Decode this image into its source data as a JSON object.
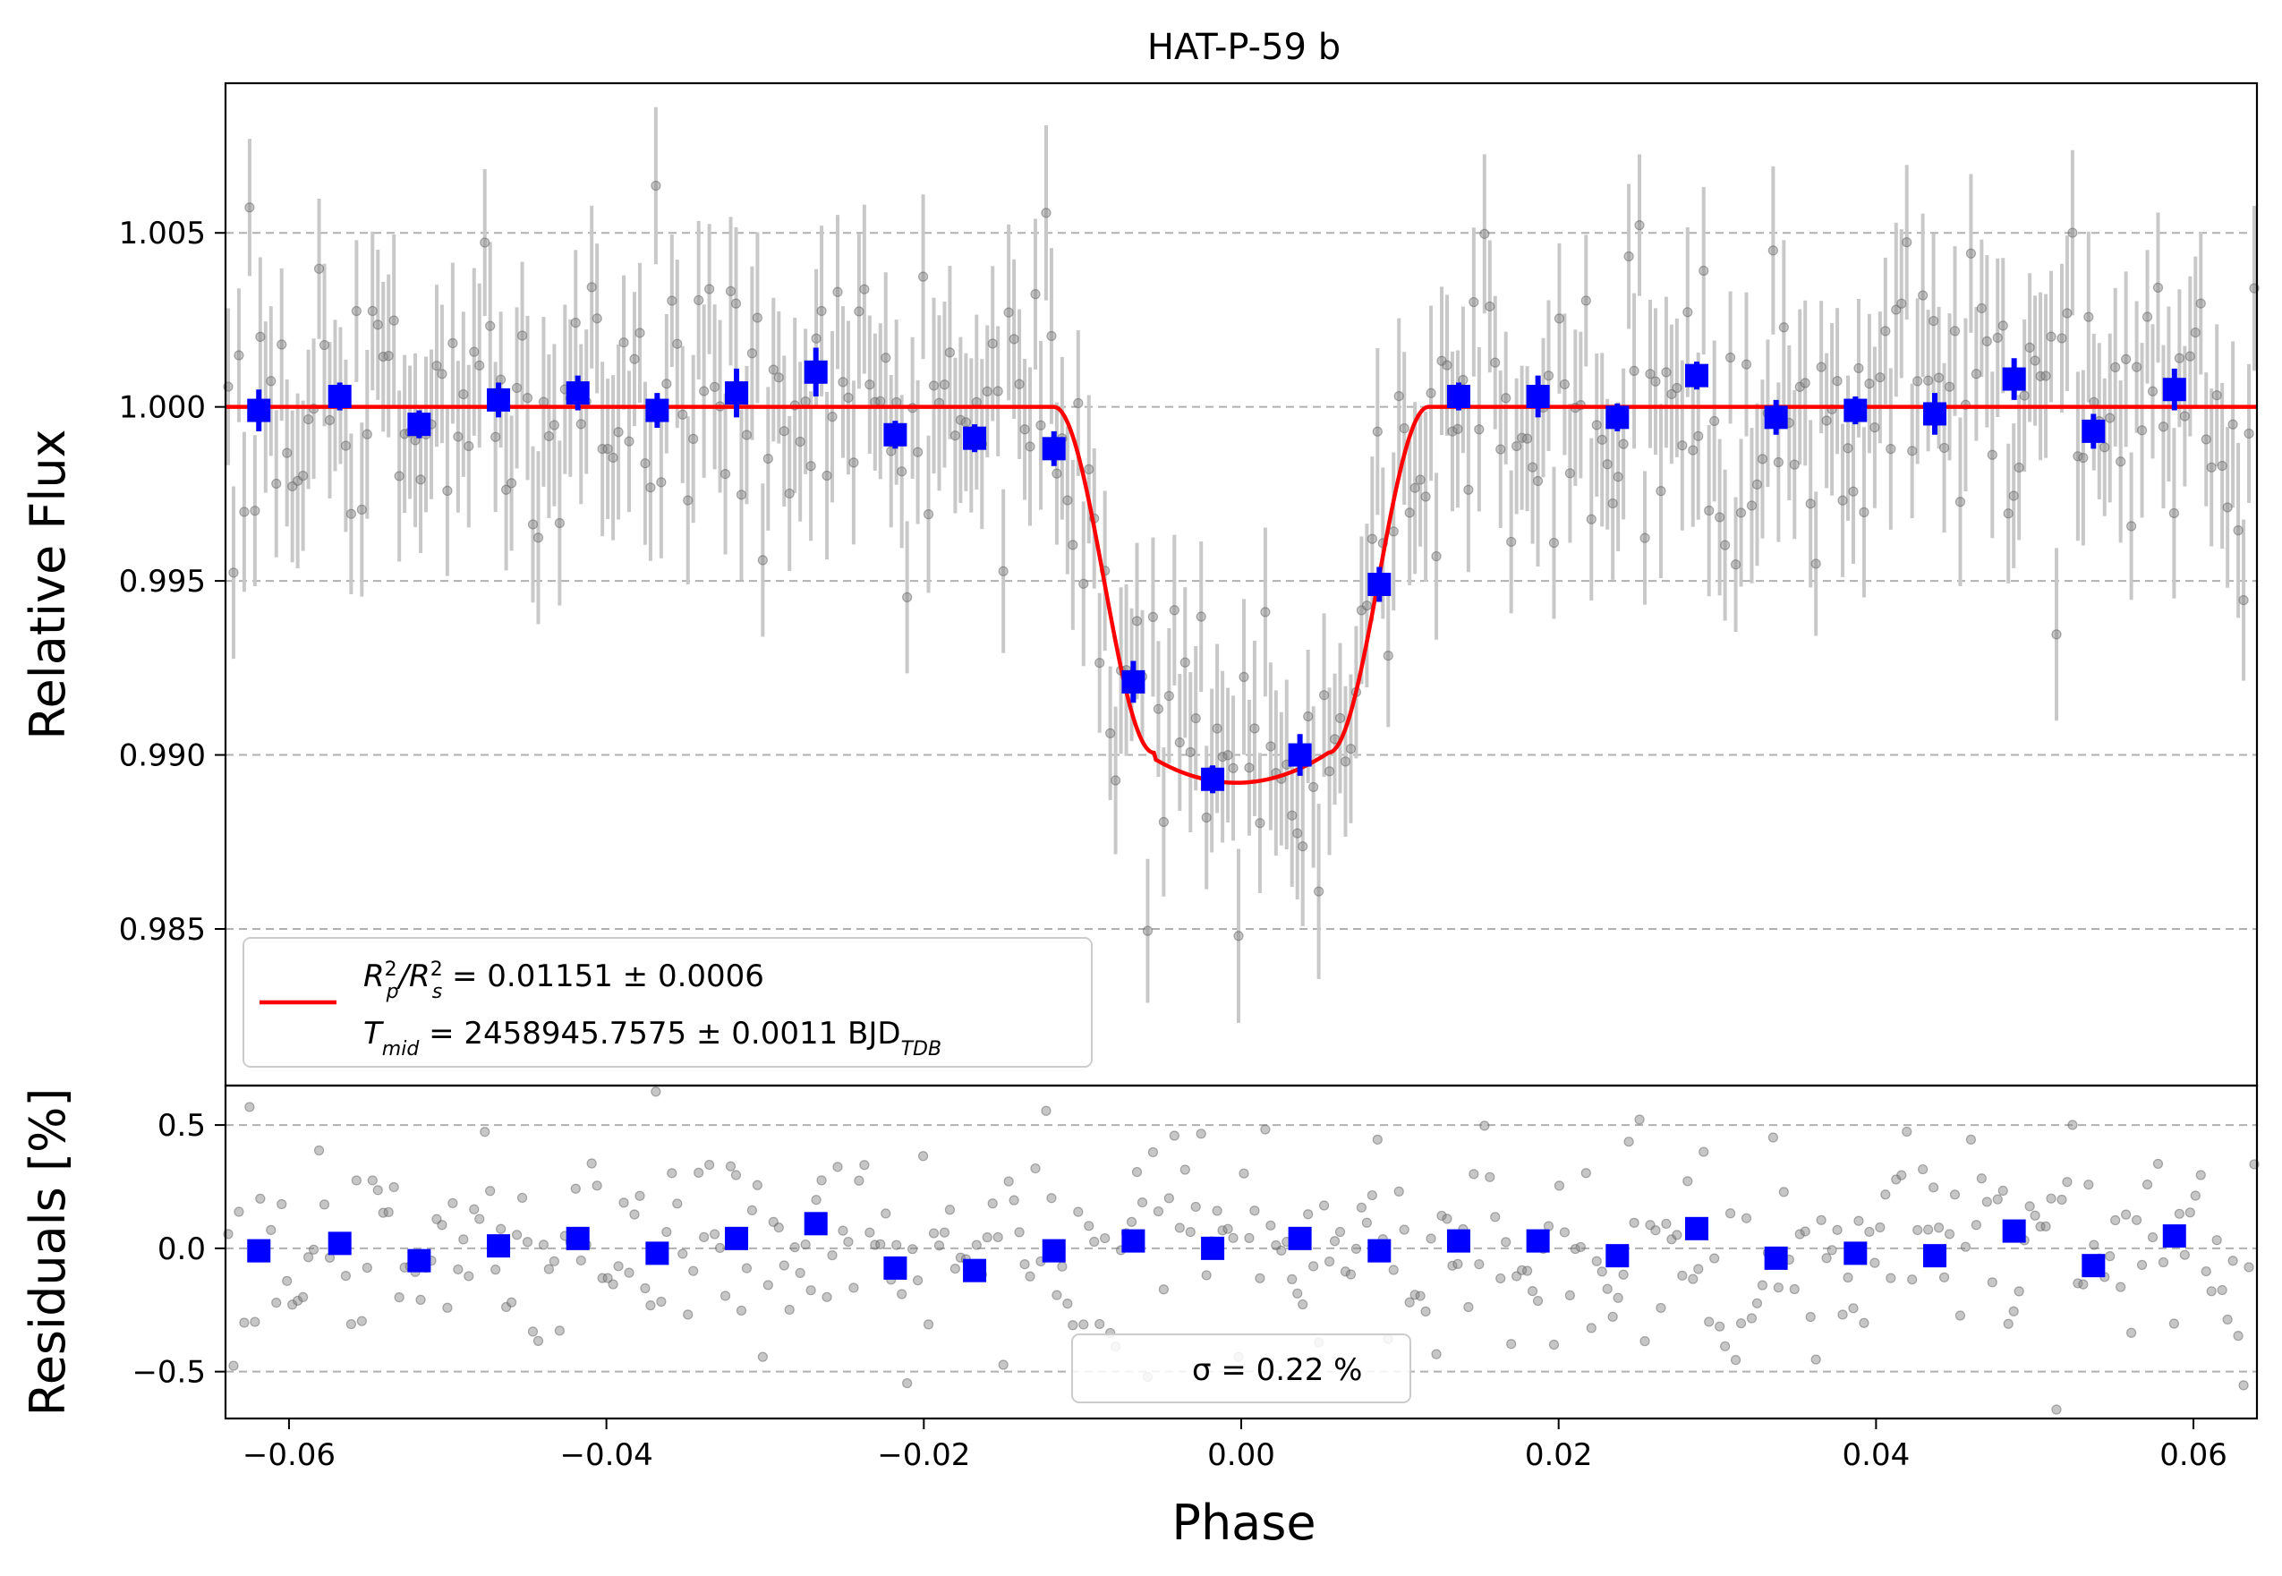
{
  "chart_data": {
    "title": "HAT-P-59 b",
    "type": "scatter",
    "xlabel": "Phase",
    "xlim": [
      -0.064,
      0.064
    ],
    "x_ticks": [
      "−0.06",
      "−0.04",
      "−0.02",
      "0.00",
      "0.02",
      "0.04",
      "0.06"
    ],
    "x_tick_values": [
      -0.06,
      -0.04,
      -0.02,
      0.0,
      0.02,
      0.04,
      0.06
    ],
    "top_panel": {
      "ylabel": "Relative Flux",
      "ylim": [
        0.9805,
        1.0093
      ],
      "y_ticks": [
        "0.985",
        "0.990",
        "0.995",
        "1.000",
        "1.005"
      ],
      "y_tick_values": [
        0.985,
        0.99,
        0.995,
        1.0,
        1.005
      ],
      "grid": "horizontal dashed",
      "legend_position": "lower-left",
      "legend": {
        "rp_label": "R_p^2/R_s^2 = 0.01151 ± 0.0006",
        "rp_prefix": "R",
        "rp_sub1": "p",
        "rp_sup1": "2",
        "rp_mid": "/R",
        "rp_sub2": "s",
        "rp_sup2": "2",
        "rp_value": " = 0.01151 ± 0.0006",
        "tmid_label": "T_mid = 2458945.7575 ± 0.0011 BJD_TDB",
        "tmid_prefix": "T",
        "tmid_sub": "mid",
        "tmid_value": " = 2458945.7575 ± 0.0011 BJD",
        "tmid_unit_sub": "TDB"
      },
      "model": {
        "color": "#ff0000",
        "baseline": 1.0,
        "depth": 0.0108,
        "t_mid": -0.0003,
        "t_contact1": -0.0118,
        "t_contact2": -0.0055,
        "t_contact3": 0.0055,
        "t_contact4": 0.0118
      },
      "binned": {
        "color": "#0000ff",
        "x": [
          -0.0619,
          -0.0568,
          -0.0518,
          -0.0468,
          -0.0418,
          -0.0368,
          -0.0318,
          -0.0268,
          -0.0218,
          -0.0168,
          -0.0118,
          -0.0068,
          -0.0018,
          0.0037,
          0.0087,
          0.0137,
          0.0187,
          0.0237,
          0.0287,
          0.0337,
          0.0387,
          0.0437,
          0.0487,
          0.0537,
          0.0588
        ],
        "y": [
          0.9999,
          1.0003,
          0.9995,
          1.0002,
          1.0004,
          0.9999,
          1.0004,
          1.001,
          0.9992,
          0.9991,
          0.9988,
          0.9921,
          0.9893,
          0.99,
          0.9949,
          1.0003,
          1.0003,
          0.9997,
          1.0009,
          0.9997,
          0.9999,
          0.9998,
          1.0008,
          0.9993,
          1.0005
        ],
        "err": [
          0.0006,
          0.0004,
          0.0004,
          0.0005,
          0.0005,
          0.0005,
          0.0007,
          0.0007,
          0.0004,
          0.0004,
          0.0005,
          0.0006,
          0.0004,
          0.0006,
          0.0005,
          0.0004,
          0.0006,
          0.0004,
          0.0004,
          0.0005,
          0.0004,
          0.0006,
          0.0006,
          0.0005,
          0.0006
        ]
      },
      "raw_points_color": "#808080",
      "raw_points_count": 380,
      "raw_points_error": 0.0022
    },
    "bottom_panel": {
      "ylabel": "Residuals [%]",
      "ylim": [
        -0.69,
        0.66
      ],
      "y_ticks": [
        "−0.5",
        "0.0",
        "0.5"
      ],
      "y_tick_values": [
        -0.5,
        0.0,
        0.5
      ],
      "grid": "horizontal dashed",
      "legend_position": "lower-center",
      "legend_text": "σ = 0.22 %",
      "binned_residuals": [
        -0.01,
        0.02,
        -0.05,
        0.01,
        0.04,
        -0.02,
        0.04,
        0.1,
        -0.08,
        -0.09,
        -0.01,
        0.03,
        0.0,
        0.04,
        -0.01,
        0.03,
        0.03,
        -0.03,
        0.08,
        -0.04,
        -0.02,
        -0.03,
        0.07,
        -0.07,
        0.05
      ],
      "raw_sigma_percent": 0.22
    }
  }
}
